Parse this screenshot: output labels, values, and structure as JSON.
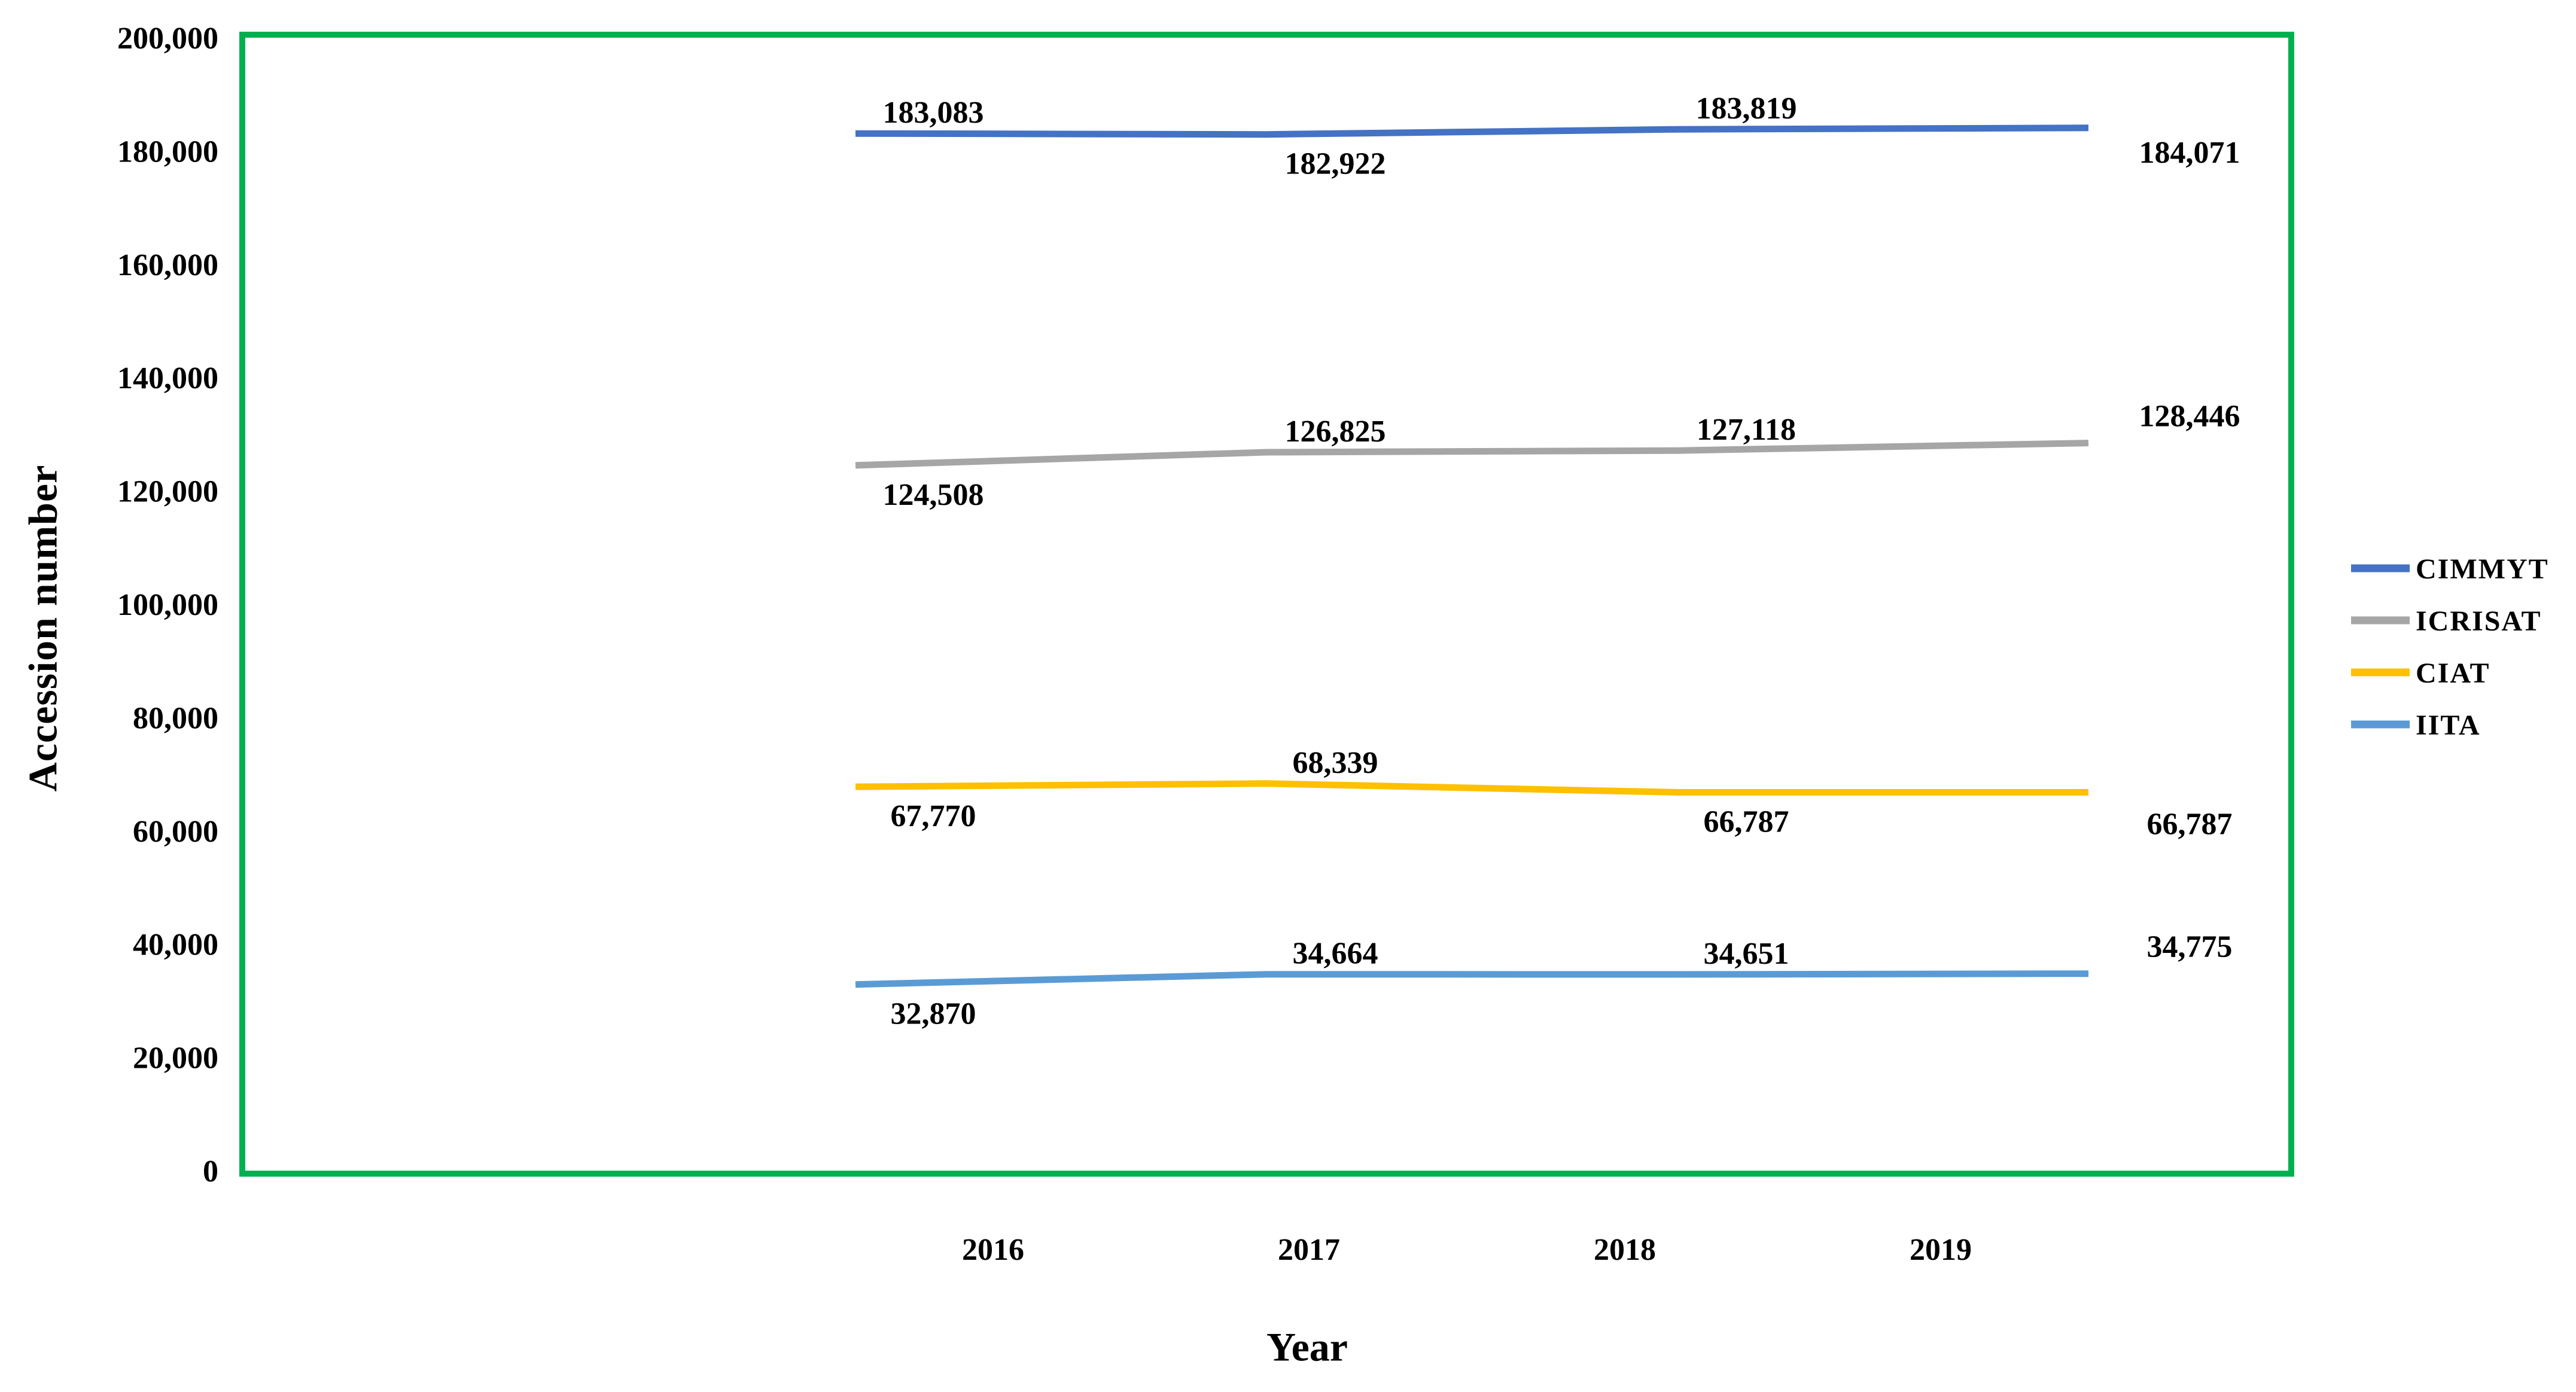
{
  "chart_data": {
    "type": "line",
    "title": "",
    "xlabel": "Year",
    "ylabel": "Accession number",
    "x_categories": [
      "2016",
      "2017",
      "2018",
      "2019"
    ],
    "ylim": [
      0,
      200000
    ],
    "y_tick_labels": [
      "0",
      "20,000",
      "40,000",
      "60,000",
      "80,000",
      "100,000",
      "120,000",
      "140,000",
      "160,000",
      "180,000",
      "200,000"
    ],
    "grid": false,
    "legend_position": "right",
    "plot_border_color": "#00B050",
    "text_color": "#000000",
    "series": [
      {
        "name": "CIMMYT",
        "color": "#4472C4",
        "values": [
          183083,
          182922,
          183819,
          184071
        ],
        "labels": [
          "183,083",
          "182,922",
          "183,819",
          "184,071"
        ],
        "label_positions": [
          "above",
          "below",
          "above",
          "end-mid"
        ]
      },
      {
        "name": "ICRISAT",
        "color": "#A6A6A6",
        "values": [
          124508,
          126825,
          127118,
          128446
        ],
        "labels": [
          "124,508",
          "126,825",
          "127,118",
          "128,446"
        ],
        "label_positions": [
          "below",
          "above",
          "above",
          "end-above"
        ]
      },
      {
        "name": "CIAT",
        "color": "#FFC000",
        "values": [
          67770,
          68339,
          66787,
          66787
        ],
        "labels": [
          "67,770",
          "68,339",
          "66,787",
          "66,787"
        ],
        "label_positions": [
          "below",
          "above",
          "below",
          "end-below"
        ]
      },
      {
        "name": "IITA",
        "color": "#5B9BD5",
        "values": [
          32870,
          34664,
          34651,
          34775
        ],
        "labels": [
          "32,870",
          "34,664",
          "34,651",
          "34,775"
        ],
        "label_positions": [
          "below",
          "above",
          "above",
          "end-above"
        ]
      }
    ]
  }
}
